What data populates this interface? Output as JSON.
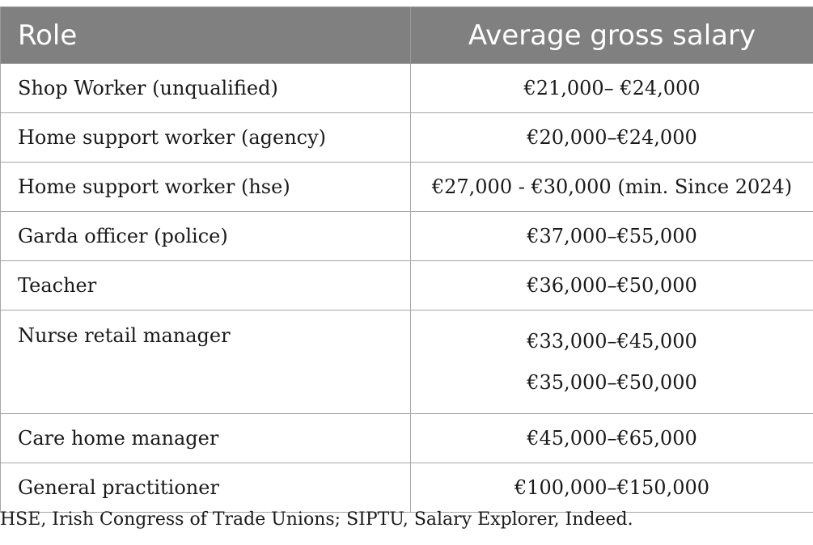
{
  "table": {
    "headers": {
      "role": "Role",
      "salary": "Average gross salary"
    },
    "rows": [
      {
        "role": "Shop Worker (unqualified)",
        "salary": "€21,000– €24,000"
      },
      {
        "role": "Home support worker (agency)",
        "salary": "€20,000–€24,000"
      },
      {
        "role": "Home support worker (hse)",
        "salary": "€27,000 - €30,000 (min. Since 2024)"
      },
      {
        "role": "Garda officer (police)",
        "salary": "€37,000–€55,000"
      },
      {
        "role": "Teacher",
        "salary": "€36,000–€50,000"
      },
      {
        "role": "Nurse retail manager",
        "salary_lines": [
          "€33,000–€45,000",
          "€35,000–€50,000"
        ]
      },
      {
        "role": "Care home manager",
        "salary": "€45,000–€65,000"
      },
      {
        "role": "General practitioner",
        "salary": "€100,000–€150,000"
      }
    ]
  },
  "footnote": "HSE, Irish Congress of Trade Unions; SIPTU, Salary Explorer, Indeed."
}
